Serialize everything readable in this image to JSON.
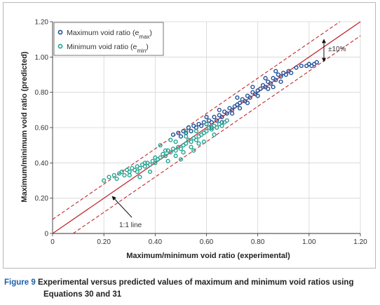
{
  "caption": {
    "label": "Figure 9",
    "text_line1": "Experimental versus predicted values of maximum and minimum void ratios using",
    "text_line2": "Equations 30 and 31"
  },
  "colors": {
    "emax": "#1f4e96",
    "emin": "#22a390",
    "line": "#c0292f",
    "grid": "#d4d4d4"
  },
  "chart_data": {
    "type": "scatter",
    "xlabel": "Maximum/minimum void ratio (experimental)",
    "ylabel": "Maximum/minimum void ratio (predicted)",
    "xlim": [
      0,
      1.2
    ],
    "ylim": [
      0,
      1.2
    ],
    "xticks": [
      "0",
      "0.20",
      "0.40",
      "0.60",
      "0.80",
      "1.00",
      "1.20"
    ],
    "yticks": [
      "0",
      "0.20",
      "0.40",
      "0.60",
      "0.80",
      "1.00",
      "1.20"
    ],
    "grid": true,
    "legend_position": "top-left",
    "series": [
      {
        "key": "emax",
        "name": "Maximum void ratio (e",
        "name_sub": "max",
        "name_close": ")",
        "color": "#1f4e96",
        "points": [
          [
            0.47,
            0.56
          ],
          [
            0.49,
            0.57
          ],
          [
            0.5,
            0.55
          ],
          [
            0.51,
            0.58
          ],
          [
            0.52,
            0.57
          ],
          [
            0.53,
            0.6
          ],
          [
            0.54,
            0.58
          ],
          [
            0.55,
            0.61
          ],
          [
            0.56,
            0.6
          ],
          [
            0.57,
            0.62
          ],
          [
            0.58,
            0.61
          ],
          [
            0.59,
            0.63
          ],
          [
            0.6,
            0.62
          ],
          [
            0.61,
            0.64
          ],
          [
            0.62,
            0.63
          ],
          [
            0.63,
            0.66
          ],
          [
            0.64,
            0.64
          ],
          [
            0.65,
            0.67
          ],
          [
            0.66,
            0.66
          ],
          [
            0.67,
            0.69
          ],
          [
            0.68,
            0.68
          ],
          [
            0.69,
            0.71
          ],
          [
            0.7,
            0.7
          ],
          [
            0.71,
            0.72
          ],
          [
            0.72,
            0.73
          ],
          [
            0.73,
            0.74
          ],
          [
            0.74,
            0.76
          ],
          [
            0.75,
            0.75
          ],
          [
            0.76,
            0.78
          ],
          [
            0.77,
            0.77
          ],
          [
            0.78,
            0.8
          ],
          [
            0.79,
            0.79
          ],
          [
            0.8,
            0.81
          ],
          [
            0.81,
            0.82
          ],
          [
            0.82,
            0.84
          ],
          [
            0.83,
            0.83
          ],
          [
            0.84,
            0.86
          ],
          [
            0.85,
            0.85
          ],
          [
            0.86,
            0.88
          ],
          [
            0.87,
            0.87
          ],
          [
            0.88,
            0.9
          ],
          [
            0.89,
            0.89
          ],
          [
            0.9,
            0.91
          ],
          [
            0.91,
            0.9
          ],
          [
            0.92,
            0.92
          ],
          [
            0.93,
            0.91
          ],
          [
            0.95,
            0.94
          ],
          [
            0.97,
            0.95
          ],
          [
            0.99,
            0.95
          ],
          [
            1.0,
            0.96
          ],
          [
            1.01,
            0.95
          ],
          [
            1.02,
            0.96
          ],
          [
            1.03,
            0.97
          ],
          [
            0.62,
            0.6
          ],
          [
            0.66,
            0.63
          ],
          [
            0.7,
            0.68
          ],
          [
            0.73,
            0.71
          ],
          [
            0.76,
            0.74
          ],
          [
            0.8,
            0.78
          ],
          [
            0.84,
            0.82
          ],
          [
            0.86,
            0.83
          ],
          [
            0.89,
            0.86
          ],
          [
            0.6,
            0.66
          ],
          [
            0.65,
            0.7
          ],
          [
            0.72,
            0.77
          ],
          [
            0.78,
            0.83
          ],
          [
            0.83,
            0.88
          ],
          [
            0.87,
            0.92
          ]
        ]
      },
      {
        "key": "emin",
        "name": "Minimum void ratio (e",
        "name_sub": "min",
        "name_close": ")",
        "color": "#22a390",
        "points": [
          [
            0.2,
            0.3
          ],
          [
            0.22,
            0.32
          ],
          [
            0.24,
            0.33
          ],
          [
            0.25,
            0.31
          ],
          [
            0.26,
            0.34
          ],
          [
            0.27,
            0.35
          ],
          [
            0.28,
            0.33
          ],
          [
            0.29,
            0.36
          ],
          [
            0.3,
            0.35
          ],
          [
            0.31,
            0.37
          ],
          [
            0.32,
            0.36
          ],
          [
            0.33,
            0.38
          ],
          [
            0.34,
            0.37
          ],
          [
            0.35,
            0.39
          ],
          [
            0.36,
            0.38
          ],
          [
            0.37,
            0.4
          ],
          [
            0.38,
            0.39
          ],
          [
            0.39,
            0.41
          ],
          [
            0.4,
            0.4
          ],
          [
            0.41,
            0.42
          ],
          [
            0.42,
            0.43
          ],
          [
            0.43,
            0.45
          ],
          [
            0.44,
            0.44
          ],
          [
            0.45,
            0.47
          ],
          [
            0.46,
            0.46
          ],
          [
            0.47,
            0.48
          ],
          [
            0.48,
            0.47
          ],
          [
            0.49,
            0.49
          ],
          [
            0.5,
            0.48
          ],
          [
            0.51,
            0.5
          ],
          [
            0.52,
            0.51
          ],
          [
            0.53,
            0.53
          ],
          [
            0.54,
            0.52
          ],
          [
            0.55,
            0.54
          ],
          [
            0.56,
            0.53
          ],
          [
            0.57,
            0.55
          ],
          [
            0.58,
            0.56
          ],
          [
            0.59,
            0.57
          ],
          [
            0.6,
            0.58
          ],
          [
            0.61,
            0.6
          ],
          [
            0.62,
            0.59
          ],
          [
            0.63,
            0.61
          ],
          [
            0.64,
            0.6
          ],
          [
            0.65,
            0.62
          ],
          [
            0.66,
            0.61
          ],
          [
            0.67,
            0.63
          ],
          [
            0.68,
            0.64
          ],
          [
            0.3,
            0.33
          ],
          [
            0.33,
            0.35
          ],
          [
            0.36,
            0.4
          ],
          [
            0.4,
            0.43
          ],
          [
            0.44,
            0.47
          ],
          [
            0.48,
            0.52
          ],
          [
            0.52,
            0.55
          ],
          [
            0.56,
            0.58
          ],
          [
            0.6,
            0.62
          ],
          [
            0.45,
            0.41
          ],
          [
            0.48,
            0.44
          ],
          [
            0.51,
            0.46
          ],
          [
            0.54,
            0.49
          ],
          [
            0.57,
            0.51
          ],
          [
            0.34,
            0.32
          ],
          [
            0.38,
            0.35
          ],
          [
            0.42,
            0.5
          ],
          [
            0.46,
            0.53
          ],
          [
            0.5,
            0.42
          ],
          [
            0.55,
            0.47
          ],
          [
            0.59,
            0.52
          ],
          [
            0.63,
            0.56
          ],
          [
            0.52,
            0.58
          ]
        ]
      }
    ],
    "lines": [
      {
        "key": "one_to_one",
        "slope": 1.0,
        "style": "solid"
      },
      {
        "key": "upper_10",
        "slope": 1.0,
        "offset": 0.08,
        "style": "dashed"
      },
      {
        "key": "lower_10",
        "slope": 1.0,
        "offset": -0.08,
        "style": "dashed"
      }
    ],
    "annotations": {
      "one_to_one_label": "1:1 line",
      "band_label": "±10%"
    }
  }
}
